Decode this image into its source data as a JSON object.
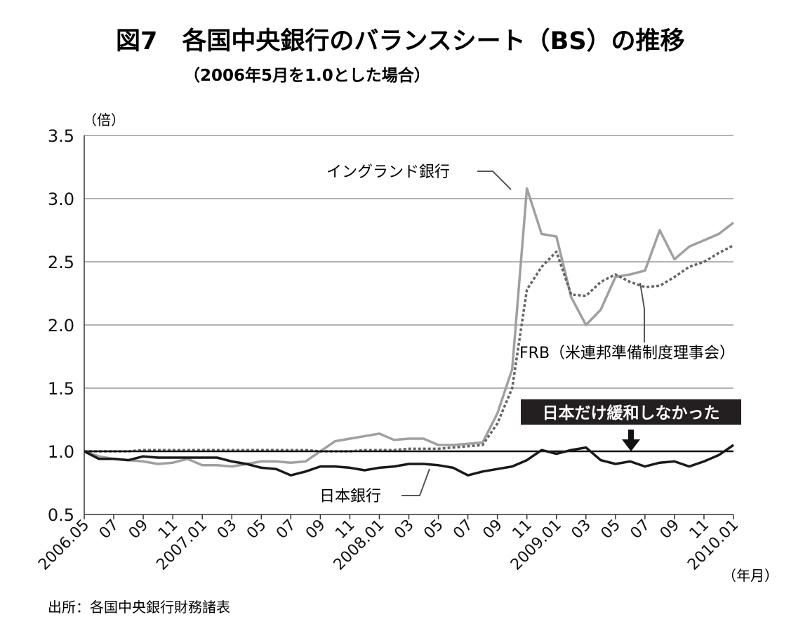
{
  "chart_data": {
    "type": "line",
    "title": "図7　各国中央銀行のバランスシート（BS）の推移",
    "subtitle": "（2006年5月を1.0とした場合）",
    "ylabel": "（倍）",
    "xlabel": "（年月）",
    "ylim": [
      0.5,
      3.5
    ],
    "yticks": [
      0.5,
      1.0,
      1.5,
      2.0,
      2.5,
      3.0,
      3.5
    ],
    "ytick_labels": [
      "0.5",
      "1.0",
      "1.5",
      "2.0",
      "2.5",
      "3.0",
      "3.5"
    ],
    "grid": true,
    "baseline": 1.0,
    "x_start": "2006-05",
    "x_points": 45,
    "xtick_labels": [
      "2006.05",
      "07",
      "09",
      "11",
      "2007.01",
      "03",
      "05",
      "07",
      "09",
      "11",
      "2008.01",
      "03",
      "05",
      "07",
      "09",
      "11",
      "2009.01",
      "03",
      "05",
      "07",
      "09",
      "11",
      "2010.01"
    ],
    "series": [
      {
        "name": "イングランド銀行",
        "values": [
          1.0,
          0.96,
          0.94,
          0.93,
          0.92,
          0.9,
          0.91,
          0.94,
          0.89,
          0.89,
          0.88,
          0.9,
          0.92,
          0.92,
          0.91,
          0.92,
          1.0,
          1.08,
          1.1,
          1.12,
          1.14,
          1.09,
          1.1,
          1.1,
          1.05,
          1.05,
          1.06,
          1.07,
          1.3,
          1.65,
          3.08,
          2.72,
          2.7,
          2.22,
          2.0,
          2.12,
          2.38,
          2.4,
          2.43,
          2.75,
          2.52,
          2.62,
          2.67,
          2.72,
          2.81
        ]
      },
      {
        "name": "FRB（米連邦準備制度理事会）",
        "values": [
          1.0,
          1.0,
          1.0,
          1.0,
          1.01,
          1.01,
          1.01,
          1.01,
          1.01,
          1.01,
          1.01,
          1.01,
          1.01,
          1.01,
          1.01,
          1.01,
          1.0,
          1.0,
          1.0,
          1.01,
          1.01,
          1.01,
          1.02,
          1.02,
          1.02,
          1.03,
          1.04,
          1.05,
          1.22,
          1.5,
          2.28,
          2.46,
          2.58,
          2.24,
          2.23,
          2.34,
          2.4,
          2.34,
          2.3,
          2.31,
          2.38,
          2.46,
          2.5,
          2.57,
          2.63
        ]
      },
      {
        "name": "日本銀行",
        "values": [
          1.0,
          0.94,
          0.94,
          0.93,
          0.96,
          0.95,
          0.95,
          0.95,
          0.95,
          0.95,
          0.92,
          0.9,
          0.87,
          0.86,
          0.81,
          0.84,
          0.88,
          0.88,
          0.87,
          0.85,
          0.87,
          0.88,
          0.9,
          0.9,
          0.89,
          0.87,
          0.81,
          0.84,
          0.86,
          0.88,
          0.93,
          1.01,
          0.98,
          1.01,
          1.03,
          0.93,
          0.9,
          0.92,
          0.88,
          0.91,
          0.92,
          0.88,
          0.92,
          0.97,
          1.05
        ]
      }
    ],
    "annotations": {
      "boe_label": "イングランド銀行",
      "frb_label": "FRB（米連邦準備制度理事会）",
      "boj_label": "日本銀行",
      "callout": "日本だけ緩和しなかった"
    },
    "source": "出所：各国中央銀行財務諸表"
  },
  "colors": {
    "boe": "#a0a0a0",
    "frb": "#666666",
    "boj": "#1a1a1a",
    "grid": "#9a9a9a",
    "callout_bg": "#231f20",
    "callout_text": "#ffffff"
  }
}
